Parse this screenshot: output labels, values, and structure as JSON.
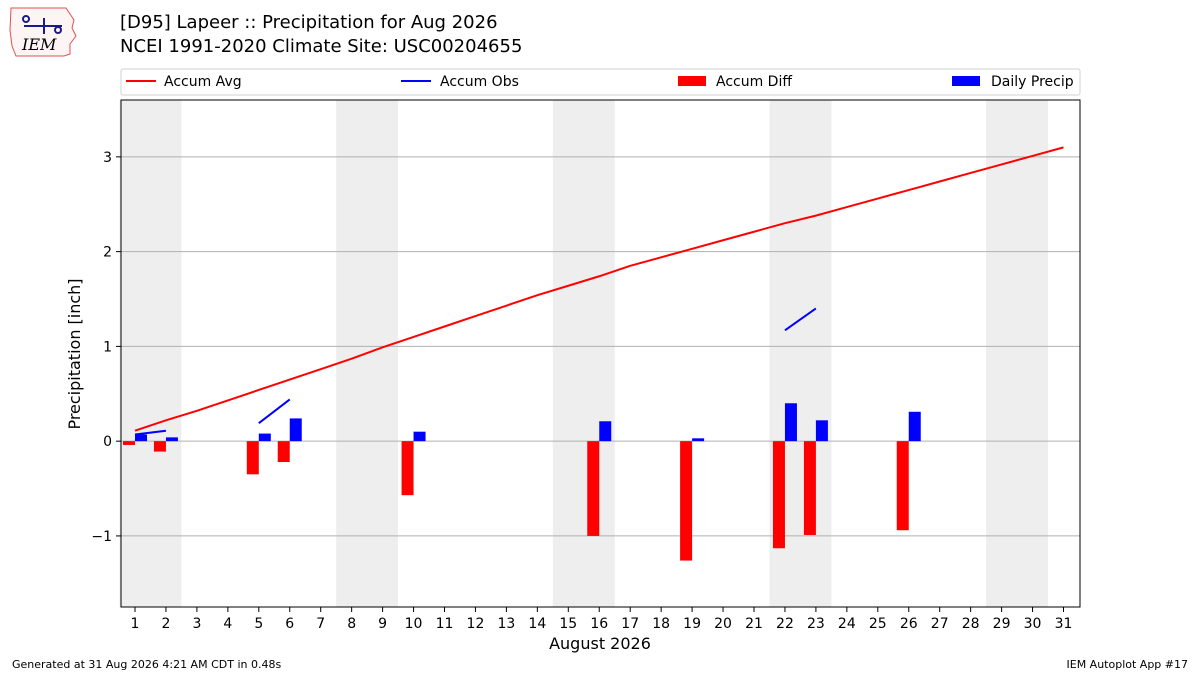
{
  "header": {
    "logo_text": "IEM",
    "title": "[D95] Lapeer :: Precipitation for Aug 2026",
    "subtitle": "NCEI 1991-2020 Climate Site: USC00204655"
  },
  "footer": {
    "left": "Generated at 31 Aug 2026 4:21 AM CDT in 0.48s",
    "right": "IEM Autoplot App #17"
  },
  "chart_data": {
    "type": "bar",
    "xlabel": "August 2026",
    "ylabel": "Precipitation [inch]",
    "xlim": [
      0.5,
      31.5
    ],
    "ylim": [
      -1.75,
      3.6
    ],
    "yticks": [
      -1,
      0,
      1,
      2,
      3
    ],
    "grid": "horizontal",
    "weekend_shading": [
      [
        1,
        2
      ],
      [
        8,
        9
      ],
      [
        15,
        16
      ],
      [
        22,
        23
      ],
      [
        29,
        30
      ]
    ],
    "legend_position": "top, above plot",
    "x": [
      1,
      2,
      3,
      4,
      5,
      6,
      7,
      8,
      9,
      10,
      11,
      12,
      13,
      14,
      15,
      16,
      17,
      18,
      19,
      20,
      21,
      22,
      23,
      24,
      25,
      26,
      27,
      28,
      29,
      30,
      31
    ],
    "series": [
      {
        "name": "Accum Avg",
        "kind": "line",
        "color": "#ff0000",
        "values": [
          0.11,
          0.22,
          0.32,
          0.43,
          0.54,
          0.65,
          0.76,
          0.87,
          0.99,
          1.1,
          1.21,
          1.32,
          1.43,
          1.54,
          1.64,
          1.74,
          1.85,
          1.94,
          2.03,
          2.12,
          2.21,
          2.3,
          2.38,
          2.47,
          2.56,
          2.65,
          2.74,
          2.83,
          2.92,
          3.01,
          3.1
        ]
      },
      {
        "name": "Accum Obs",
        "kind": "line",
        "color": "#0000ff",
        "segments": [
          {
            "x": [
              1,
              2
            ],
            "values": [
              0.07,
              0.11
            ]
          },
          {
            "x": [
              5,
              6
            ],
            "values": [
              0.19,
              0.44
            ]
          },
          {
            "x": [
              22,
              23
            ],
            "values": [
              1.17,
              1.4
            ]
          }
        ]
      },
      {
        "name": "Accum Diff",
        "kind": "bar",
        "color": "#ff0000",
        "x": [
          1,
          2,
          5,
          6,
          10,
          16,
          19,
          22,
          23,
          26
        ],
        "values": [
          -0.04,
          -0.11,
          -0.35,
          -0.22,
          -0.57,
          -1.0,
          -1.26,
          -1.13,
          -0.99,
          -0.94
        ]
      },
      {
        "name": "Daily Precip",
        "kind": "bar",
        "color": "#0000ff",
        "x": [
          1,
          2,
          5,
          6,
          10,
          16,
          19,
          22,
          23,
          26
        ],
        "values": [
          0.07,
          0.04,
          0.08,
          0.24,
          0.1,
          0.21,
          0.03,
          0.4,
          0.22,
          0.31
        ]
      }
    ]
  }
}
